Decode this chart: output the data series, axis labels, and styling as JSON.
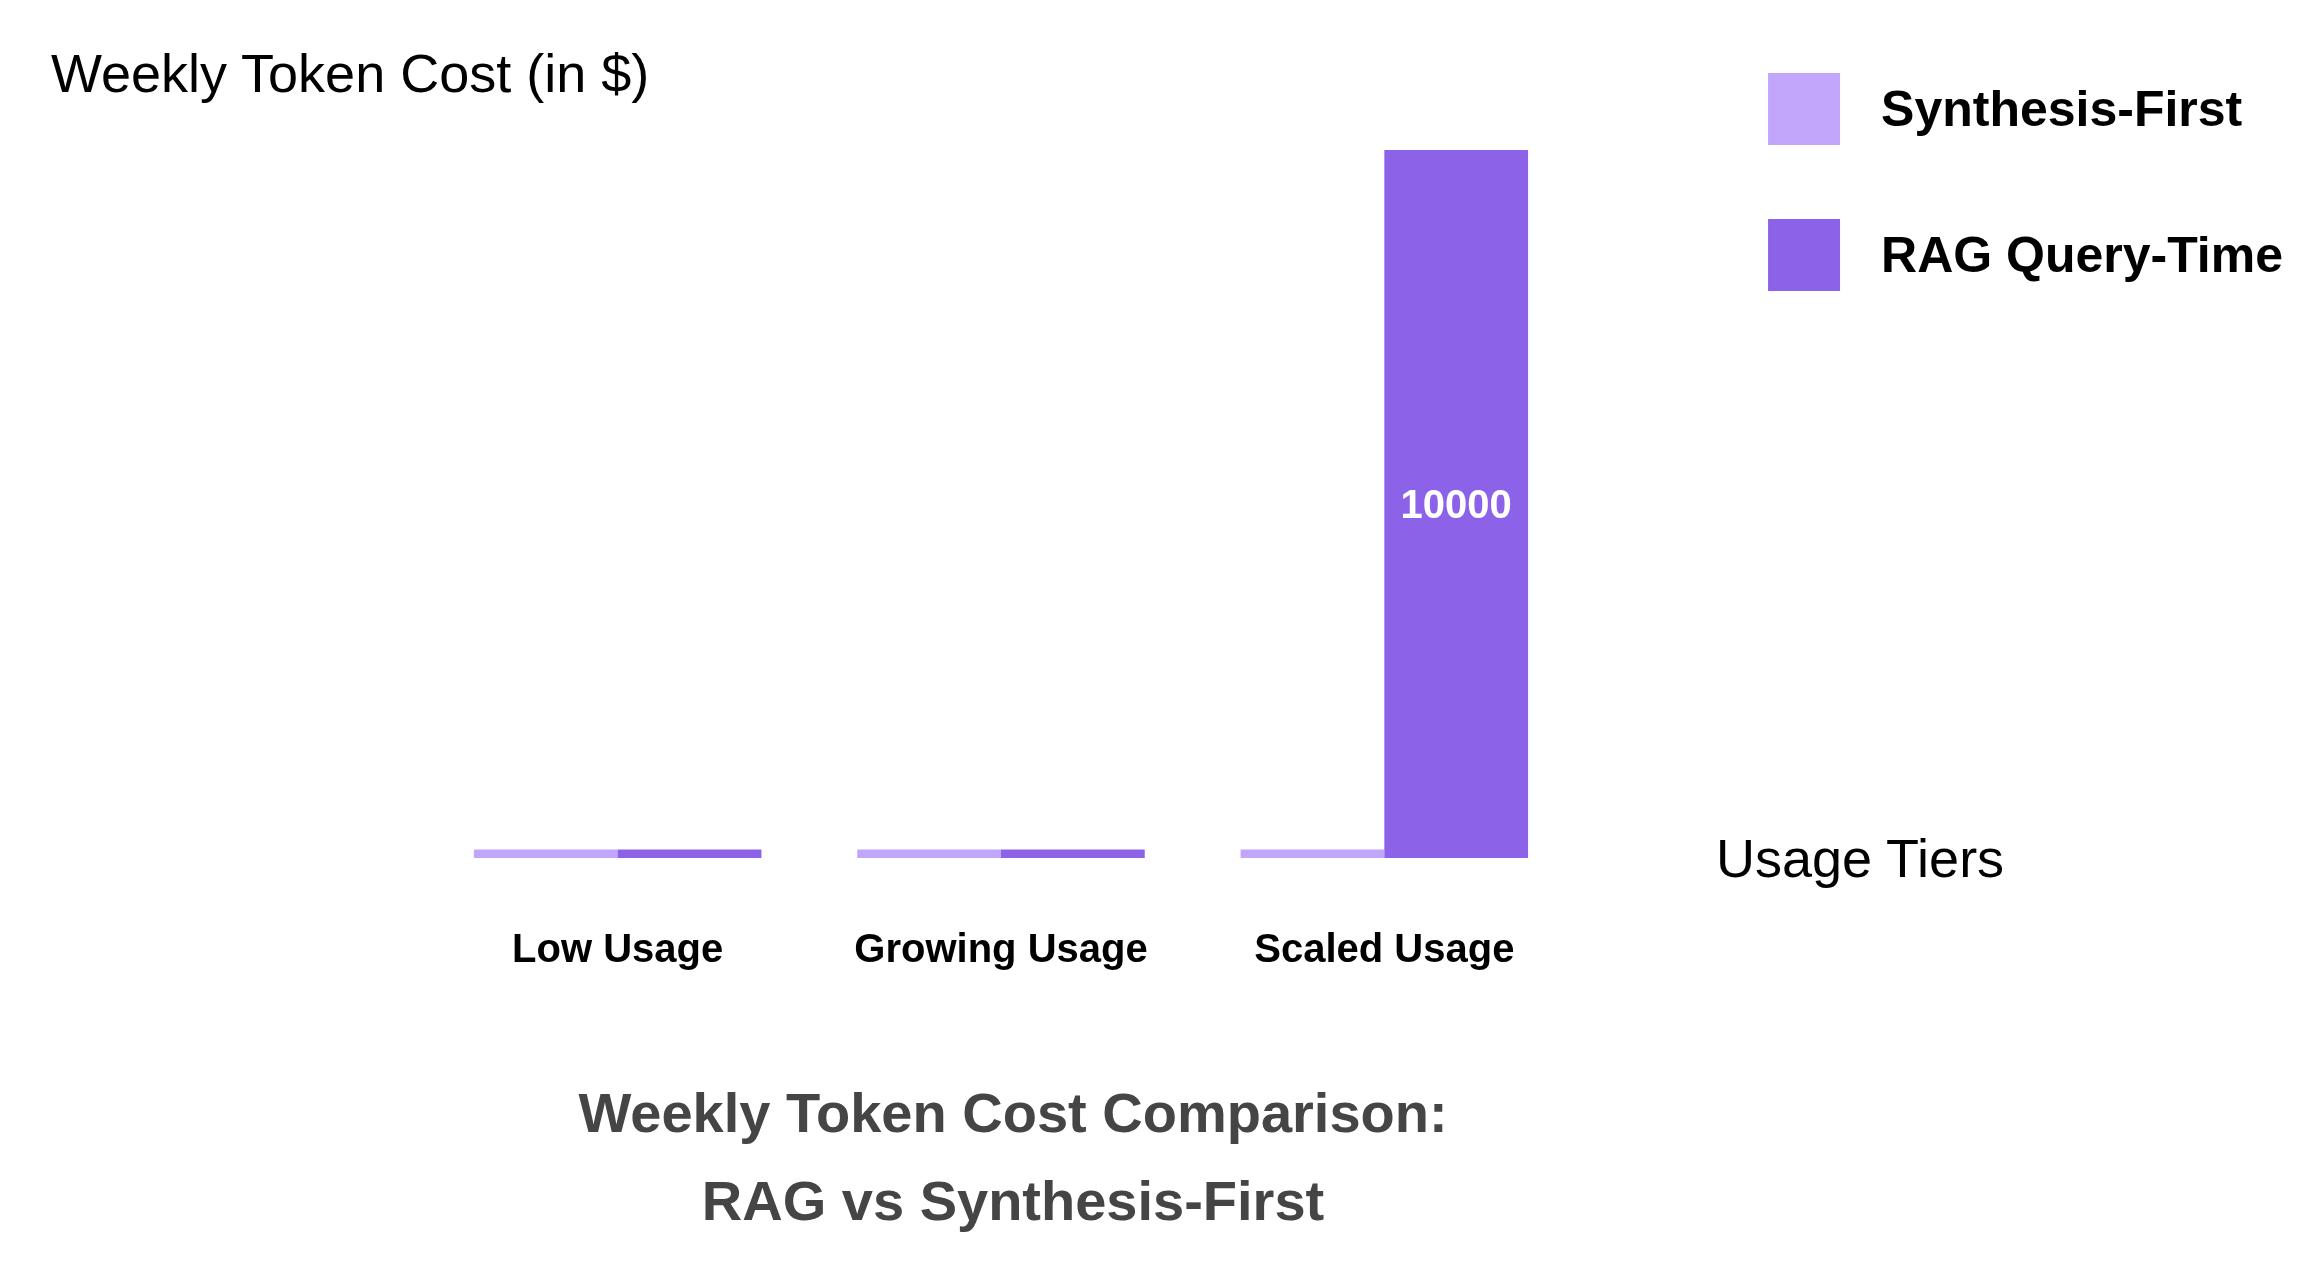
{
  "chart_data": {
    "type": "bar",
    "title": "Weekly Token Cost Comparison:\nRAG vs Synthesis-First",
    "ylabel": "Weekly Token Cost (in $)",
    "xlabel": "Usage Tiers",
    "categories": [
      "Low Usage",
      "Growing Usage",
      "Scaled Usage"
    ],
    "series": [
      {
        "name": "Synthesis-First",
        "color": "#c2a6fb",
        "values": [
          120,
          120,
          120
        ],
        "value_labels": [
          null,
          null,
          null
        ]
      },
      {
        "name": "RAG Query-Time",
        "color": "#8c63e8",
        "values": [
          120,
          120,
          10000
        ],
        "value_labels": [
          null,
          null,
          "10000"
        ]
      }
    ],
    "legend": "top right",
    "grid": false
  }
}
